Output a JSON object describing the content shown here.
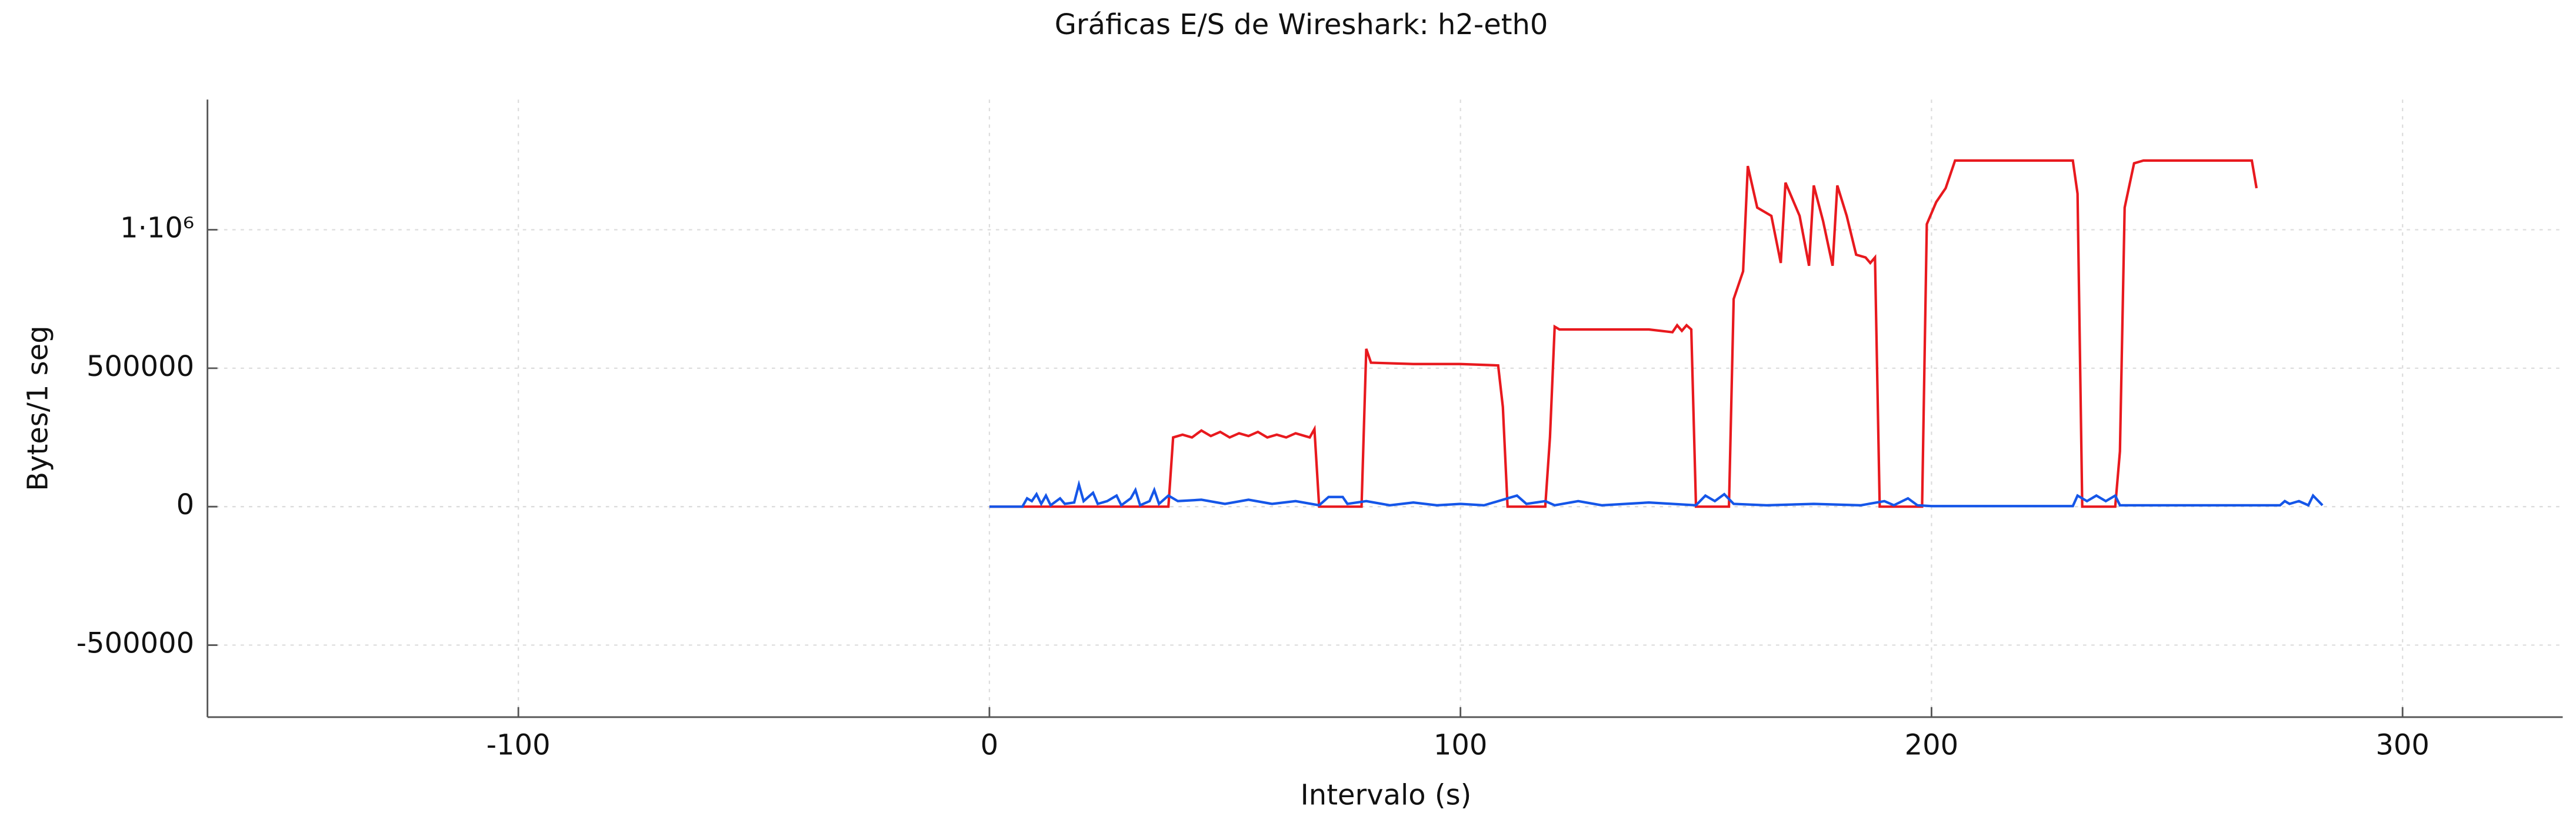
{
  "chart_data": {
    "type": "line",
    "title": "Gráficas E/S de Wireshark: h2-eth0",
    "x_label": "Intervalo (s)",
    "y_label": "Bytes/1 seg",
    "xlim": [
      -166,
      334
    ],
    "ylim": [
      -760000,
      1470000
    ],
    "xticks": [
      -100,
      0,
      100,
      200,
      300
    ],
    "yticks": [
      -500000,
      0,
      500000,
      {
        "value": 1000000,
        "label": "1·10⁶"
      }
    ],
    "grid": true,
    "series": [
      {
        "color": "#e8191e",
        "x": [
          0,
          38,
          39,
          41,
          43,
          45,
          47,
          49,
          51,
          53,
          55,
          57,
          59,
          61,
          63,
          65,
          67,
          68,
          69,
          70,
          79,
          80,
          81,
          90,
          100,
          108,
          109,
          110,
          118,
          119,
          120,
          121,
          130,
          140,
          145,
          146,
          147,
          148,
          149,
          150,
          157,
          158,
          160,
          161,
          163,
          166,
          168,
          169,
          172,
          174,
          175,
          177,
          179,
          180,
          182,
          184,
          186,
          187,
          188,
          189,
          198,
          199,
          201,
          203,
          205,
          210,
          220,
          230,
          231,
          232,
          239,
          240,
          241,
          243,
          245,
          255,
          268,
          269
        ],
        "values": [
          0,
          0,
          250000,
          260000,
          250000,
          275000,
          255000,
          270000,
          250000,
          265000,
          255000,
          270000,
          250000,
          260000,
          250000,
          265000,
          255000,
          250000,
          280000,
          0,
          0,
          570000,
          520000,
          515000,
          515000,
          510000,
          360000,
          0,
          0,
          250000,
          650000,
          640000,
          640000,
          640000,
          630000,
          655000,
          635000,
          655000,
          640000,
          0,
          0,
          750000,
          850000,
          1230000,
          1080000,
          1050000,
          880000,
          1170000,
          1050000,
          870000,
          1160000,
          1030000,
          870000,
          1160000,
          1050000,
          910000,
          900000,
          880000,
          900000,
          0,
          0,
          1020000,
          1100000,
          1150000,
          1250000,
          1250000,
          1250000,
          1250000,
          1130000,
          0,
          0,
          200000,
          1080000,
          1240000,
          1250000,
          1250000,
          1250000,
          1150000
        ]
      },
      {
        "color": "#1556e8",
        "x": [
          0,
          7,
          8,
          9,
          10,
          11,
          12,
          13,
          15,
          16,
          18,
          19,
          20,
          22,
          23,
          25,
          27,
          28,
          30,
          31,
          32,
          34,
          35,
          36,
          38,
          40,
          45,
          50,
          55,
          60,
          65,
          70,
          72,
          75,
          76,
          80,
          85,
          90,
          95,
          100,
          105,
          110,
          112,
          114,
          118,
          120,
          125,
          130,
          140,
          150,
          152,
          154,
          156,
          158,
          165,
          175,
          185,
          190,
          192,
          195,
          197,
          200,
          230,
          231,
          233,
          235,
          237,
          239,
          240,
          274,
          275,
          276,
          278,
          280,
          281,
          283
        ],
        "values": [
          0,
          0,
          30000,
          20000,
          45000,
          10000,
          40000,
          5000,
          30000,
          10000,
          15000,
          80000,
          20000,
          50000,
          10000,
          20000,
          40000,
          5000,
          30000,
          60000,
          5000,
          20000,
          60000,
          10000,
          40000,
          20000,
          25000,
          10000,
          25000,
          10000,
          20000,
          5000,
          35000,
          35000,
          10000,
          20000,
          5000,
          15000,
          5000,
          10000,
          5000,
          30000,
          40000,
          10000,
          20000,
          5000,
          20000,
          5000,
          15000,
          5000,
          40000,
          20000,
          45000,
          10000,
          5000,
          10000,
          5000,
          20000,
          5000,
          30000,
          5000,
          2000,
          2000,
          40000,
          20000,
          40000,
          20000,
          40000,
          5000,
          5000,
          20000,
          10000,
          20000,
          5000,
          40000,
          5000
        ]
      }
    ]
  }
}
